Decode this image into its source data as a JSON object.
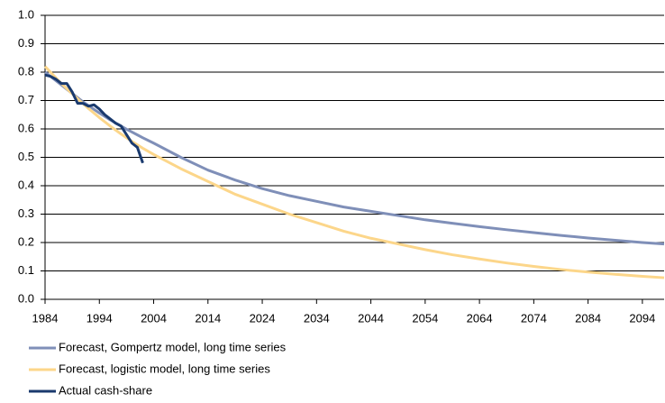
{
  "chart_data": {
    "type": "line",
    "x": [
      1984,
      1985,
      1986,
      1987,
      1988,
      1989,
      1990,
      1991,
      1992,
      1993,
      1994,
      1995,
      1996,
      1997,
      1998,
      1999,
      2000,
      2001,
      2002,
      2004,
      2009,
      2014,
      2019,
      2024,
      2029,
      2034,
      2039,
      2044,
      2049,
      2054,
      2059,
      2064,
      2069,
      2074,
      2079,
      2084,
      2089,
      2094,
      2098
    ],
    "series": [
      {
        "name": "Forecast, Gompertz model, long time series",
        "color": "#7f8fb8",
        "values": [
          0.8,
          0.785,
          0.77,
          0.755,
          0.74,
          0.725,
          0.71,
          0.695,
          0.682,
          0.669,
          0.656,
          0.644,
          0.632,
          0.621,
          0.61,
          0.599,
          0.589,
          0.579,
          0.569,
          0.55,
          0.5,
          0.455,
          0.42,
          0.39,
          0.365,
          0.345,
          0.325,
          0.31,
          0.295,
          0.28,
          0.268,
          0.256,
          0.245,
          0.235,
          0.225,
          0.216,
          0.208,
          0.2,
          0.195
        ]
      },
      {
        "name": "Forecast, logistic model, long time series",
        "color": "#fcd68a",
        "values": [
          0.82,
          0.8,
          0.78,
          0.76,
          0.742,
          0.724,
          0.706,
          0.689,
          0.672,
          0.656,
          0.64,
          0.625,
          0.61,
          0.596,
          0.582,
          0.569,
          0.556,
          0.544,
          0.532,
          0.51,
          0.46,
          0.415,
          0.37,
          0.335,
          0.3,
          0.27,
          0.24,
          0.215,
          0.195,
          0.175,
          0.157,
          0.142,
          0.128,
          0.116,
          0.105,
          0.096,
          0.088,
          0.081,
          0.076
        ]
      },
      {
        "name": "Actual cash-share",
        "color": "#1a3a6e",
        "values": [
          0.79,
          0.785,
          0.775,
          0.76,
          0.76,
          0.73,
          0.69,
          0.69,
          0.68,
          0.685,
          0.67,
          0.65,
          0.635,
          0.62,
          0.61,
          0.58,
          0.55,
          0.535,
          0.48,
          null,
          null,
          null,
          null,
          null,
          null,
          null,
          null,
          null,
          null,
          null,
          null,
          null,
          null,
          null,
          null,
          null,
          null,
          null,
          null
        ]
      }
    ],
    "xlim": [
      1984,
      2098
    ],
    "xticks": [
      1984,
      1994,
      2004,
      2014,
      2024,
      2034,
      2044,
      2054,
      2064,
      2074,
      2084,
      2094
    ],
    "ylim": [
      0,
      1
    ],
    "yticks": [
      {
        "value": 0,
        "label": "0.0"
      },
      0.1,
      0.2,
      0.3,
      0.4,
      0.5,
      0.6,
      0.7,
      0.8,
      0.9,
      {
        "value": 1,
        "label": "1.0"
      }
    ],
    "grid": true
  }
}
